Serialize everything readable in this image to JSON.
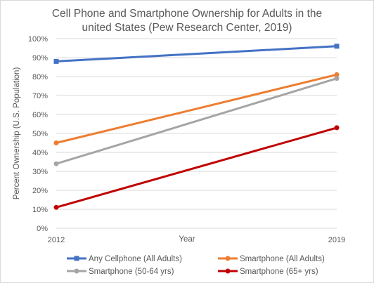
{
  "chart_data": {
    "type": "line",
    "title_lines": [
      "Cell Phone and Smartphone Ownership for Adults in the",
      "united States (Pew Research Center, 2019)"
    ],
    "xlabel": "Year",
    "ylabel": "Percent Ownership (U.S. Population)",
    "x": [
      "2012",
      "2019"
    ],
    "yticks": [
      "0%",
      "10%",
      "20%",
      "30%",
      "40%",
      "50%",
      "60%",
      "70%",
      "80%",
      "90%",
      "100%"
    ],
    "ylim": [
      0,
      100
    ],
    "grid": true,
    "legend_position": "bottom",
    "series": [
      {
        "name": "Any Cellphone (All Adults)",
        "values": [
          88,
          96
        ],
        "color": "#4472C4",
        "marker": "square"
      },
      {
        "name": "Smartphone (All Adults)",
        "values": [
          45,
          81
        ],
        "color": "#ED7D31",
        "marker": "circle"
      },
      {
        "name": "Smartphone (50-64 yrs)",
        "values": [
          34,
          79
        ],
        "color": "#A5A5A5",
        "marker": "circle"
      },
      {
        "name": "Smartphone (65+ yrs)",
        "values": [
          11,
          53
        ],
        "color": "#C00000",
        "marker": "circle"
      }
    ]
  }
}
